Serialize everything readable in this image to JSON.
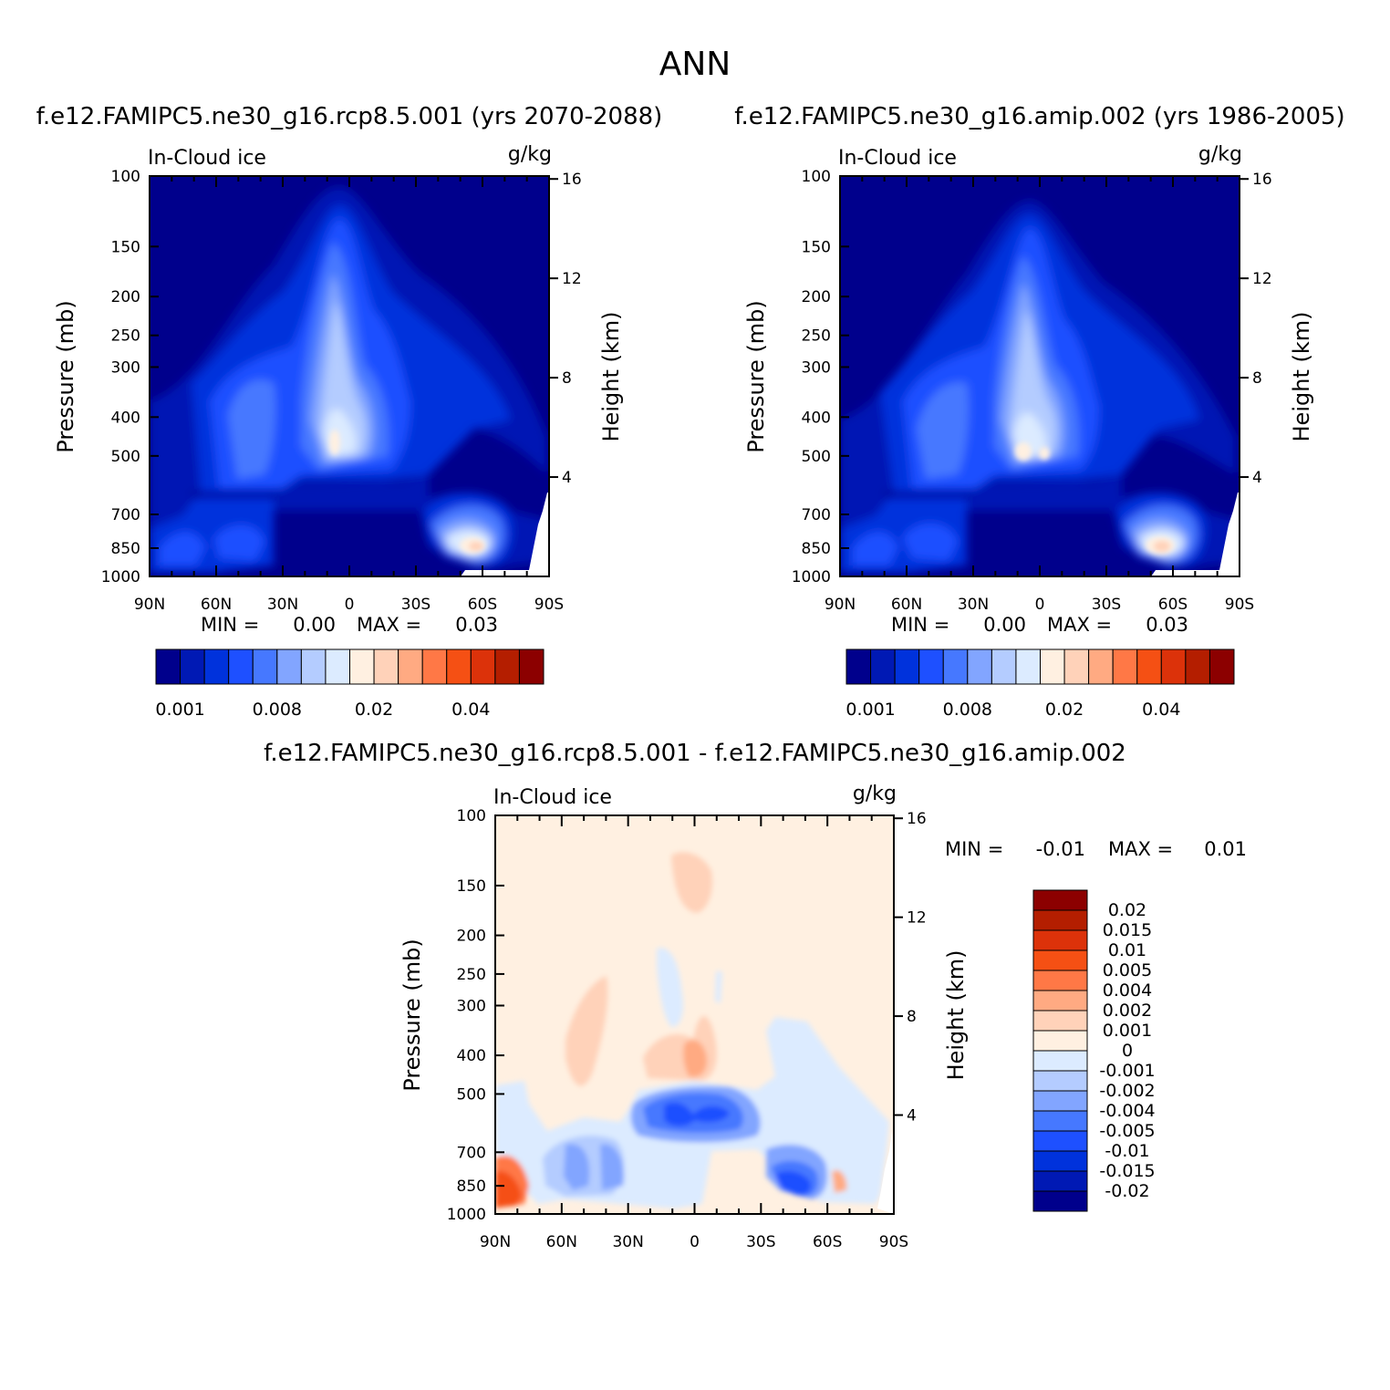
{
  "title": "ANN",
  "colors": {
    "abs_palette": [
      "#00008c",
      "#0019b4",
      "#0032dc",
      "#1e50ff",
      "#4678ff",
      "#82a5ff",
      "#b4ccff",
      "#dcebff",
      "#fff0e1",
      "#ffd2b9",
      "#ffaa82",
      "#ff7846",
      "#f55014",
      "#dc320a",
      "#b41e00",
      "#8c0000"
    ],
    "diff_palette": [
      "#00008c",
      "#0019b4",
      "#0032dc",
      "#1e50ff",
      "#4678ff",
      "#82a5ff",
      "#b4ccff",
      "#dcebff",
      "#fff0e1",
      "#ffd2b9",
      "#ffaa82",
      "#ff7846",
      "#f55014",
      "#dc320a",
      "#b41e00",
      "#8c0000"
    ]
  },
  "chart_data": [
    {
      "type": "heatmap",
      "name": "case",
      "title": "f.e12.FAMIPC5.ne30_g16.rcp8.5.001 (yrs 2070-2088)",
      "left_label": "In-Cloud ice",
      "right_label": "g/kg",
      "xlabel": "",
      "ylabel": "Pressure (mb)",
      "y2label": "Height (km)",
      "x_ticks": [
        "90N",
        "60N",
        "30N",
        "0",
        "30S",
        "60S",
        "90S"
      ],
      "y_ticks": [
        "100",
        "150",
        "200",
        "250",
        "300",
        "400",
        "500",
        "700",
        "850",
        "1000"
      ],
      "y_tick_values": [
        100,
        150,
        200,
        250,
        300,
        400,
        500,
        700,
        850,
        1000
      ],
      "y2_ticks": [
        "16",
        "12",
        "8",
        "4"
      ],
      "y2_tick_values": [
        16,
        12,
        8,
        4
      ],
      "min_label": "MIN =",
      "min_value": "0.00",
      "max_label": "MAX =",
      "max_value": "0.03",
      "colorbar_labels": [
        "0.001",
        "0.008",
        "0.02",
        "0.04"
      ],
      "peak_value": 0.03
    },
    {
      "type": "heatmap",
      "name": "control",
      "title": "f.e12.FAMIPC5.ne30_g16.amip.002 (yrs 1986-2005)",
      "left_label": "In-Cloud ice",
      "right_label": "g/kg",
      "xlabel": "",
      "ylabel": "Pressure (mb)",
      "y2label": "Height (km)",
      "x_ticks": [
        "90N",
        "60N",
        "30N",
        "0",
        "30S",
        "60S",
        "90S"
      ],
      "y_ticks": [
        "100",
        "150",
        "200",
        "250",
        "300",
        "400",
        "500",
        "700",
        "850",
        "1000"
      ],
      "y_tick_values": [
        100,
        150,
        200,
        250,
        300,
        400,
        500,
        700,
        850,
        1000
      ],
      "y2_ticks": [
        "16",
        "12",
        "8",
        "4"
      ],
      "y2_tick_values": [
        16,
        12,
        8,
        4
      ],
      "min_label": "MIN =",
      "min_value": "0.00",
      "max_label": "MAX =",
      "max_value": "0.03",
      "colorbar_labels": [
        "0.001",
        "0.008",
        "0.02",
        "0.04"
      ],
      "peak_value": 0.03
    },
    {
      "type": "heatmap",
      "name": "difference",
      "title": "f.e12.FAMIPC5.ne30_g16.rcp8.5.001 - f.e12.FAMIPC5.ne30_g16.amip.002",
      "left_label": "In-Cloud ice",
      "right_label": "g/kg",
      "xlabel": "",
      "ylabel": "Pressure (mb)",
      "y2label": "Height (km)",
      "x_ticks": [
        "90N",
        "60N",
        "30N",
        "0",
        "30S",
        "60S",
        "90S"
      ],
      "y_ticks": [
        "100",
        "150",
        "200",
        "250",
        "300",
        "400",
        "500",
        "700",
        "850",
        "1000"
      ],
      "y_tick_values": [
        100,
        150,
        200,
        250,
        300,
        400,
        500,
        700,
        850,
        1000
      ],
      "y2_ticks": [
        "16",
        "12",
        "8",
        "4"
      ],
      "y2_tick_values": [
        16,
        12,
        8,
        4
      ],
      "min_label": "MIN =",
      "min_value": "-0.01",
      "max_label": "MAX =",
      "max_value": "0.01",
      "colorbar_labels": [
        "0.02",
        "0.015",
        "0.01",
        "0.005",
        "0.004",
        "0.002",
        "0.001",
        "0",
        "-0.001",
        "-0.002",
        "-0.004",
        "-0.005",
        "-0.01",
        "-0.015",
        "-0.02"
      ]
    }
  ]
}
